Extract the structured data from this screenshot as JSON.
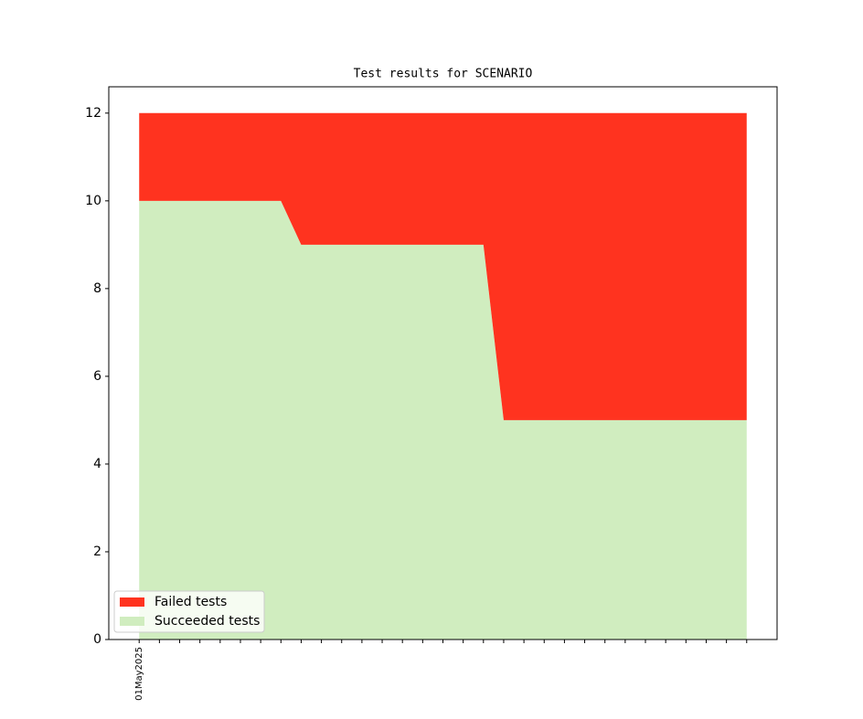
{
  "chart_data": {
    "type": "stacked-area",
    "title": "Test results for SCENARIO",
    "categories": [
      "01May2025",
      null,
      null,
      null,
      null,
      null,
      null,
      null,
      null,
      null,
      null,
      null,
      null,
      null,
      null,
      null,
      null,
      null,
      null,
      null,
      null,
      null,
      null,
      null,
      null,
      null,
      null,
      null,
      null,
      null,
      null
    ],
    "series": [
      {
        "name": "Failed tests",
        "color": "#ff331f",
        "values": [
          2,
          2,
          2,
          2,
          2,
          2,
          2,
          2,
          3,
          3,
          3,
          3,
          3,
          3,
          3,
          3,
          3,
          3,
          7,
          7,
          7,
          7,
          7,
          7,
          7,
          7,
          7,
          7,
          7,
          7,
          7
        ]
      },
      {
        "name": "Succeeded tests",
        "color": "#d0edbf",
        "values": [
          10,
          10,
          10,
          10,
          10,
          10,
          10,
          10,
          9,
          9,
          9,
          9,
          9,
          9,
          9,
          9,
          9,
          9,
          5,
          5,
          5,
          5,
          5,
          5,
          5,
          5,
          5,
          5,
          5,
          5,
          5
        ]
      }
    ],
    "ylim": [
      0,
      12.6
    ],
    "yticks": [
      0,
      2,
      4,
      6,
      8,
      10,
      12
    ],
    "legend": "lower left"
  }
}
